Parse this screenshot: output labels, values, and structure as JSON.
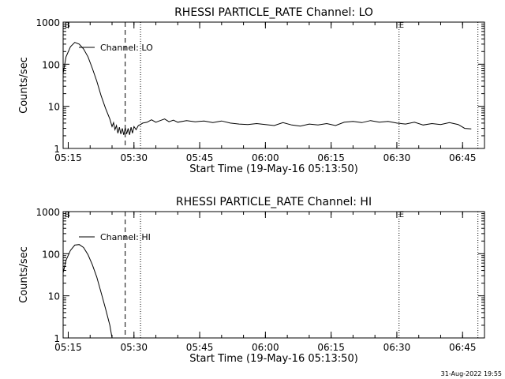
{
  "footer": {
    "timestamp": "31-Aug-2022 19:55"
  },
  "chart_data": [
    {
      "type": "line",
      "title": "RHESSI PARTICLE_RATE Channel: LO",
      "xlabel": "Start Time (19-May-16 05:13:50)",
      "ylabel": "Counts/sec",
      "yscale": "log",
      "ylim": [
        1,
        1000
      ],
      "xlim": [
        "05:13:50",
        "06:50:00"
      ],
      "x_ticks": [
        "05:15",
        "05:30",
        "05:45",
        "06:00",
        "06:15",
        "06:30",
        "06:45"
      ],
      "y_ticks": [
        "1",
        "10",
        "100",
        "1000"
      ],
      "markers": {
        "B": "B",
        "E": "E"
      },
      "legend": "Channel: LO",
      "vlines": {
        "dashed": "05:28:00",
        "dotted": [
          "05:31:30",
          "06:30:30",
          "06:48:30"
        ]
      },
      "series": [
        {
          "name": "Channel: LO",
          "points": [
            [
              "05:13:50",
              60
            ],
            [
              "05:14:30",
              150
            ],
            [
              "05:15:30",
              260
            ],
            [
              "05:16:30",
              330
            ],
            [
              "05:17:30",
              300
            ],
            [
              "05:18:30",
              230
            ],
            [
              "05:19:30",
              150
            ],
            [
              "05:20:30",
              80
            ],
            [
              "05:21:30",
              40
            ],
            [
              "05:22:30",
              18
            ],
            [
              "05:23:30",
              9
            ],
            [
              "05:24:30",
              5
            ],
            [
              "05:25:00",
              3.3
            ],
            [
              "05:25:20",
              4.1
            ],
            [
              "05:25:40",
              2.8
            ],
            [
              "05:26:00",
              3.5
            ],
            [
              "05:26:20",
              2.3
            ],
            [
              "05:26:40",
              3.2
            ],
            [
              "05:27:00",
              2.2
            ],
            [
              "05:27:20",
              3.0
            ],
            [
              "05:27:40",
              2.1
            ],
            [
              "05:28:00",
              3.1
            ],
            [
              "05:28:20",
              2.2
            ],
            [
              "05:28:40",
              3.0
            ],
            [
              "05:29:00",
              2.1
            ],
            [
              "05:29:20",
              3.2
            ],
            [
              "05:29:40",
              2.3
            ],
            [
              "05:30:00",
              3.3
            ],
            [
              "05:30:30",
              2.8
            ],
            [
              "05:31:00",
              3.5
            ],
            [
              "05:31:30",
              3.7
            ],
            [
              "05:32:00",
              4.0
            ],
            [
              "05:33:00",
              4.2
            ],
            [
              "05:34:00",
              4.8
            ],
            [
              "05:35:00",
              4.2
            ],
            [
              "05:36:00",
              4.6
            ],
            [
              "05:37:00",
              5.0
            ],
            [
              "05:38:00",
              4.3
            ],
            [
              "05:39:00",
              4.7
            ],
            [
              "05:40:00",
              4.2
            ],
            [
              "05:42:00",
              4.6
            ],
            [
              "05:44:00",
              4.3
            ],
            [
              "05:46:00",
              4.5
            ],
            [
              "05:48:00",
              4.1
            ],
            [
              "05:50:00",
              4.5
            ],
            [
              "05:52:00",
              4.0
            ],
            [
              "05:54:00",
              3.8
            ],
            [
              "05:56:00",
              3.7
            ],
            [
              "05:58:00",
              3.9
            ],
            [
              "06:00:00",
              3.7
            ],
            [
              "06:02:00",
              3.5
            ],
            [
              "06:04:00",
              4.1
            ],
            [
              "06:06:00",
              3.6
            ],
            [
              "06:08:00",
              3.4
            ],
            [
              "06:10:00",
              3.8
            ],
            [
              "06:12:00",
              3.6
            ],
            [
              "06:14:00",
              3.9
            ],
            [
              "06:16:00",
              3.5
            ],
            [
              "06:18:00",
              4.2
            ],
            [
              "06:20:00",
              4.4
            ],
            [
              "06:22:00",
              4.1
            ],
            [
              "06:24:00",
              4.6
            ],
            [
              "06:26:00",
              4.2
            ],
            [
              "06:28:00",
              4.4
            ],
            [
              "06:30:00",
              4.0
            ],
            [
              "06:32:00",
              3.8
            ],
            [
              "06:34:00",
              4.2
            ],
            [
              "06:36:00",
              3.6
            ],
            [
              "06:38:00",
              3.9
            ],
            [
              "06:40:00",
              3.7
            ],
            [
              "06:42:00",
              4.1
            ],
            [
              "06:44:00",
              3.7
            ],
            [
              "06:45:30",
              3.0
            ],
            [
              "06:47:00",
              2.9
            ]
          ]
        }
      ]
    },
    {
      "type": "line",
      "title": "RHESSI PARTICLE_RATE Channel: HI",
      "xlabel": "Start Time (19-May-16 05:13:50)",
      "ylabel": "Counts/sec",
      "yscale": "log",
      "ylim": [
        1,
        1000
      ],
      "xlim": [
        "05:13:50",
        "06:50:00"
      ],
      "x_ticks": [
        "05:15",
        "05:30",
        "05:45",
        "06:00",
        "06:15",
        "06:30",
        "06:45"
      ],
      "y_ticks": [
        "1",
        "10",
        "100",
        "1000"
      ],
      "markers": {
        "B": "B",
        "E": "E"
      },
      "legend": "Channel: HI",
      "vlines": {
        "dashed": "05:28:00",
        "dotted": [
          "05:31:30",
          "06:30:30",
          "06:48:30"
        ]
      },
      "series": [
        {
          "name": "Channel: HI",
          "points": [
            [
              "05:13:50",
              35
            ],
            [
              "05:14:30",
              70
            ],
            [
              "05:15:30",
              120
            ],
            [
              "05:16:30",
              160
            ],
            [
              "05:17:30",
              165
            ],
            [
              "05:18:30",
              140
            ],
            [
              "05:19:30",
              95
            ],
            [
              "05:20:30",
              55
            ],
            [
              "05:21:30",
              28
            ],
            [
              "05:22:30",
              12
            ],
            [
              "05:23:30",
              5
            ],
            [
              "05:24:30",
              2.0
            ],
            [
              "05:25:00",
              1.0
            ]
          ]
        }
      ]
    }
  ]
}
